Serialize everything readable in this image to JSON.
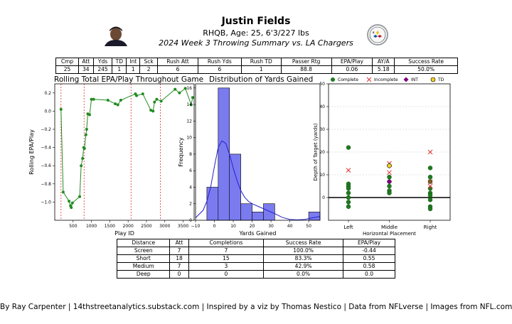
{
  "header": {
    "title": "Justin Fields",
    "subtitle": "RHQB, Age: 25, 6'3/227 lbs",
    "game": "2024 Week 3 Throwing Summary vs. LA Chargers"
  },
  "stats": {
    "headers": [
      "Cmp",
      "Att",
      "Yds",
      "TD",
      "Int",
      "Sck",
      "Rush Att",
      "Rush Yds",
      "Rush TD",
      "Passer Rtg",
      "EPA/Play",
      "AY/A",
      "Success Rate"
    ],
    "values": [
      "25",
      "34",
      "245",
      "1",
      "1",
      "2",
      "6",
      "6",
      "1",
      "88.8",
      "0.06",
      "5.18",
      "50.0%"
    ]
  },
  "distance_table": {
    "headers": [
      "Distance",
      "Att",
      "Completions",
      "Success Rate",
      "EPA/Play"
    ],
    "rows": [
      [
        "Screen",
        "7",
        "7",
        "100.0%",
        "-0.44"
      ],
      [
        "Short",
        "18",
        "15",
        "83.3%",
        "0.55"
      ],
      [
        "Medium",
        "7",
        "3",
        "42.9%",
        "0.58"
      ],
      [
        "Deep",
        "0",
        "0",
        "0.0%",
        "0.0"
      ]
    ]
  },
  "chart_data": [
    {
      "type": "line",
      "title": "Rolling Total EPA/Play Throughout Game",
      "xlabel": "Play ID",
      "ylabel": "Rolling EPA/Play",
      "xlim": [
        0,
        3800
      ],
      "ylim": [
        -1.2,
        0.3
      ],
      "xticks": [
        500,
        1000,
        1500,
        2000,
        2500,
        3000,
        3500
      ],
      "yticks": [
        -1.0,
        -0.8,
        -0.6,
        -0.4,
        -0.2,
        0.0,
        0.2
      ],
      "x": [
        170,
        230,
        390,
        430,
        450,
        480,
        680,
        720,
        760,
        790,
        810,
        850,
        870,
        900,
        950,
        1000,
        1060,
        1450,
        1650,
        1720,
        1800,
        2200,
        2230,
        2400,
        2620,
        2680,
        2720,
        2780,
        2900,
        3280,
        3400,
        3560,
        3720,
        3760
      ],
      "y": [
        0.02,
        -0.89,
        -0.99,
        -1.04,
        -1.06,
        -1.01,
        -0.94,
        -0.6,
        -0.52,
        -0.4,
        -0.41,
        -0.26,
        -0.2,
        -0.03,
        -0.04,
        0.13,
        0.13,
        0.12,
        0.08,
        0.07,
        0.12,
        0.19,
        0.17,
        0.19,
        0.01,
        0.0,
        0.1,
        0.13,
        0.11,
        0.24,
        0.2,
        0.25,
        0.07,
        0.15
      ],
      "vlines": [
        170,
        800,
        2080,
        2880
      ],
      "color": "#228b22",
      "vline_color": "#dd3333"
    },
    {
      "type": "bar",
      "title": "Distribution of Yards Gained",
      "xlabel": "Yards Gained",
      "ylabel": "Frequency",
      "xlim": [
        -10,
        56
      ],
      "ylim": [
        0,
        16.5
      ],
      "xticks": [
        -10,
        0,
        10,
        20,
        30,
        40,
        50
      ],
      "yticks": [
        0,
        2,
        4,
        6,
        8,
        10,
        12,
        14,
        16
      ],
      "bin_edges": [
        -4,
        2,
        8,
        14,
        20,
        26,
        32,
        38,
        44,
        50,
        56
      ],
      "values": [
        4,
        16,
        8,
        2,
        1,
        2,
        0,
        0,
        0,
        1
      ],
      "kde_x": [
        -10,
        -6,
        -4,
        -2,
        0,
        2,
        4,
        6,
        8,
        10,
        12,
        14,
        16,
        18,
        20,
        24,
        28,
        32,
        36,
        40,
        44,
        48,
        52,
        56
      ],
      "kde_y": [
        0.3,
        1.2,
        2.3,
        4.0,
        6.5,
        8.8,
        9.6,
        9.3,
        8.0,
        6.3,
        4.8,
        3.6,
        2.8,
        2.3,
        2.0,
        1.6,
        1.2,
        0.8,
        0.35,
        0.1,
        0.05,
        0.1,
        0.3,
        0.45
      ],
      "bar_color": "#7b7bf0",
      "line_color": "#2222cc"
    },
    {
      "type": "scatter",
      "title": "",
      "xlabel": "Horizontal Placement",
      "ylabel": "Depth of Target (yards)",
      "categories": [
        "Left",
        "Middle",
        "Right"
      ],
      "ylim": [
        -10,
        50
      ],
      "yticks": [
        0,
        10,
        20,
        30,
        40,
        50
      ],
      "legend": [
        "Complete",
        "Incomplete",
        "INT",
        "TD"
      ],
      "legend_location": "top",
      "series": [
        {
          "name": "Complete",
          "color": "#1e7b1e",
          "points": [
            [
              "Left",
              22
            ],
            [
              "Left",
              6
            ],
            [
              "Left",
              5
            ],
            [
              "Left",
              4
            ],
            [
              "Left",
              2
            ],
            [
              "Left",
              0
            ],
            [
              "Left",
              -2
            ],
            [
              "Left",
              -4
            ],
            [
              "Middle",
              14
            ],
            [
              "Middle",
              9
            ],
            [
              "Middle",
              7
            ],
            [
              "Middle",
              5
            ],
            [
              "Middle",
              3
            ],
            [
              "Middle",
              2
            ],
            [
              "Right",
              13
            ],
            [
              "Right",
              9
            ],
            [
              "Right",
              7
            ],
            [
              "Right",
              4
            ],
            [
              "Right",
              2
            ],
            [
              "Right",
              1
            ],
            [
              "Right",
              -1
            ],
            [
              "Right",
              -4
            ],
            [
              "Right",
              -5
            ]
          ]
        },
        {
          "name": "Incomplete",
          "color": "#e03030",
          "points": [
            [
              "Left",
              12
            ],
            [
              "Middle",
              15
            ],
            [
              "Middle",
              11
            ],
            [
              "Right",
              20
            ],
            [
              "Right",
              7
            ],
            [
              "Right",
              5
            ]
          ]
        },
        {
          "name": "INT",
          "color": "#800080",
          "points": [
            [
              "Middle",
              7
            ]
          ]
        },
        {
          "name": "TD",
          "color": "#f2d024",
          "points": [
            [
              "Middle",
              14
            ]
          ]
        }
      ]
    }
  ],
  "footer": "By Ray Carpenter | 14thstreetanalytics.substack.com | Inspired by a viz by Thomas Nestico | Data from NFLverse | Images from NFL.com"
}
